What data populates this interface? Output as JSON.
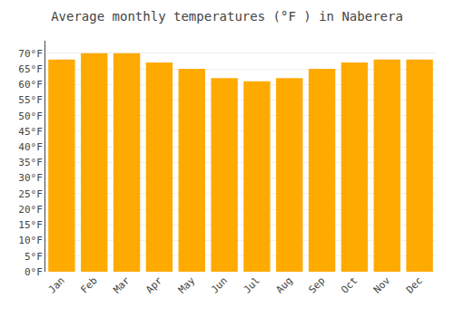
{
  "chart_data": {
    "type": "bar",
    "title": "Average monthly temperatures (°F ) in Naberera",
    "categories": [
      "Jan",
      "Feb",
      "Mar",
      "Apr",
      "May",
      "Jun",
      "Jul",
      "Aug",
      "Sep",
      "Oct",
      "Nov",
      "Dec"
    ],
    "values": [
      68,
      70,
      70,
      67,
      65,
      62,
      61,
      62,
      65,
      67,
      68,
      68
    ],
    "color": "#FFAA00",
    "ylim": [
      0,
      74
    ],
    "yticks": [
      {
        "value": 0,
        "label": "0°F"
      },
      {
        "value": 5,
        "label": "5°F"
      },
      {
        "value": 10,
        "label": "10°F"
      },
      {
        "value": 15,
        "label": "15°F"
      },
      {
        "value": 20,
        "label": "20°F"
      },
      {
        "value": 25,
        "label": "25°F"
      },
      {
        "value": 30,
        "label": "30°F"
      },
      {
        "value": 35,
        "label": "35°F"
      },
      {
        "value": 40,
        "label": "40°F"
      },
      {
        "value": 45,
        "label": "45°F"
      },
      {
        "value": 50,
        "label": "50°F"
      },
      {
        "value": 55,
        "label": "55°F"
      },
      {
        "value": 60,
        "label": "60°F"
      },
      {
        "value": 65,
        "label": "65°F"
      },
      {
        "value": 70,
        "label": "70°F"
      }
    ],
    "grid": true
  }
}
